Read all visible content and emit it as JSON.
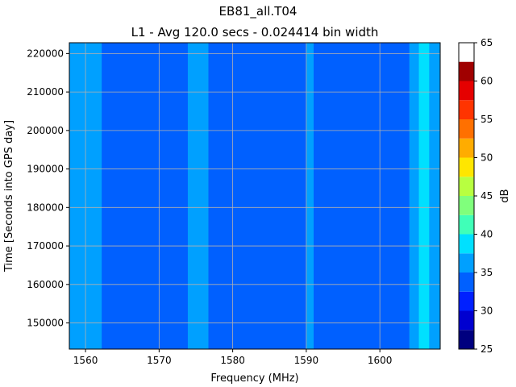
{
  "chart_data": {
    "type": "heatmap",
    "title": "EB81_all.T04",
    "subtitle": "L1 - Avg 120.0 secs - 0.024414 bin width",
    "xlabel": "Frequency (MHz)",
    "ylabel": "Time [Seconds into GPS day]",
    "xlim": [
      1557.8,
      1608.2
    ],
    "ylim": [
      143200,
      222800
    ],
    "x_ticks": [
      1560,
      1570,
      1580,
      1590,
      1600
    ],
    "y_ticks": [
      150000,
      160000,
      170000,
      180000,
      190000,
      200000,
      210000,
      220000
    ],
    "grid": true,
    "colorbar": {
      "label": "dB",
      "levels": [
        25,
        27.5,
        30,
        32.5,
        35,
        37.5,
        40,
        42.5,
        45,
        47.5,
        50,
        52.5,
        55,
        57.5,
        60,
        62.5,
        65
      ],
      "ticks": [
        25,
        30,
        35,
        40,
        45,
        50,
        55,
        60,
        65
      ],
      "colors": [
        "#00007f",
        "#0000d0",
        "#0020ff",
        "#0060ff",
        "#00a0ff",
        "#00e0ff",
        "#40ffb8",
        "#80ff7c",
        "#b8ff40",
        "#ffe600",
        "#ffac00",
        "#ff7000",
        "#ff3400",
        "#e50000",
        "#a00000"
      ]
    },
    "base_level_db": 33.75,
    "bands": [
      {
        "x_start": 1557.8,
        "x_end": 1562.2,
        "level_db": 36.25
      },
      {
        "x_start": 1573.9,
        "x_end": 1576.7,
        "level_db": 36.25
      },
      {
        "x_start": 1590.0,
        "x_end": 1591.0,
        "level_db": 36.25
      },
      {
        "x_start": 1604.0,
        "x_end": 1608.2,
        "level_db": 36.25
      },
      {
        "x_start": 1605.3,
        "x_end": 1606.7,
        "level_db": 38.75
      }
    ]
  }
}
